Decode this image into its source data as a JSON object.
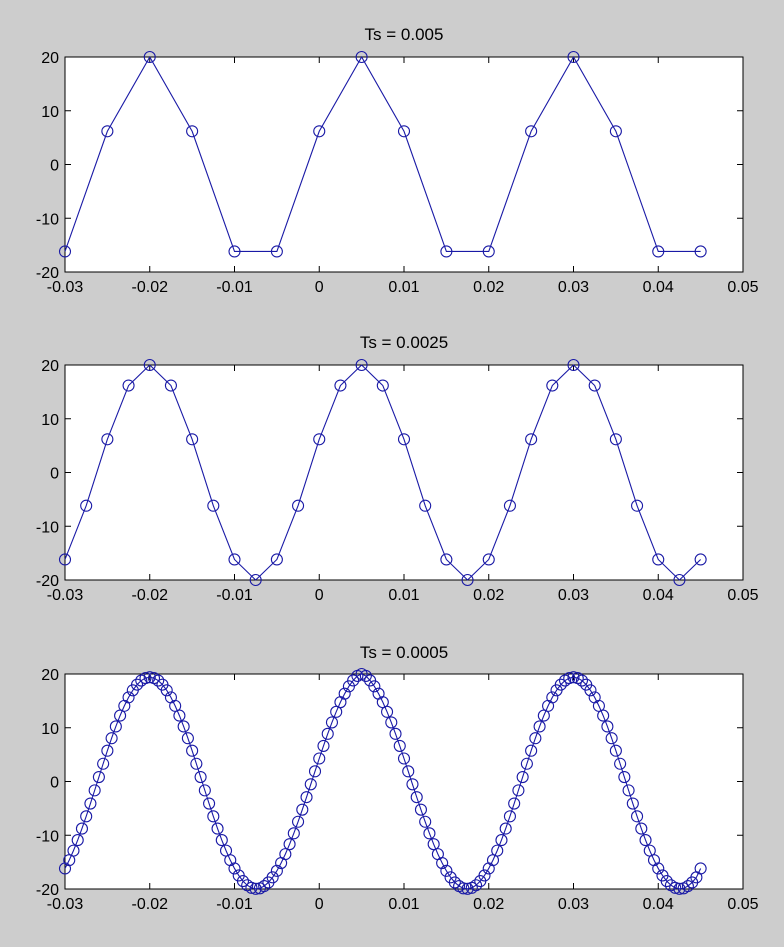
{
  "figure": {
    "background": "#cdcdcd",
    "line_color": "#1a1aa6"
  },
  "chart_data": [
    {
      "type": "line",
      "title": "Ts = 0.005",
      "marker": "circle",
      "xlim": [
        -0.03,
        0.05
      ],
      "ylim": [
        -20,
        20
      ],
      "xticks": [
        "-0.03",
        "-0.02",
        "-0.01",
        "0",
        "0.01",
        "0.02",
        "0.03",
        "0.04",
        "0.05"
      ],
      "yticks": [
        "-20",
        "-10",
        "0",
        "10",
        "20"
      ],
      "x": [
        -0.03,
        -0.025,
        -0.02,
        -0.015,
        -0.01,
        -0.005,
        0,
        0.005,
        0.01,
        0.015,
        0.02,
        0.025,
        0.03,
        0.035,
        0.04,
        0.045
      ],
      "y": [
        -16.18,
        6.18,
        20,
        6.18,
        -16.18,
        -16.18,
        6.18,
        20,
        6.18,
        -16.18,
        -16.18,
        6.18,
        20,
        6.18,
        -16.18,
        -16.18
      ]
    },
    {
      "type": "line",
      "title": "Ts = 0.0025",
      "marker": "circle",
      "xlim": [
        -0.03,
        0.05
      ],
      "ylim": [
        -20,
        20
      ],
      "xticks": [
        "-0.03",
        "-0.02",
        "-0.01",
        "0",
        "0.01",
        "0.02",
        "0.03",
        "0.04",
        "0.05"
      ],
      "yticks": [
        "-20",
        "-10",
        "0",
        "10",
        "20"
      ],
      "x": [
        -0.03,
        -0.0275,
        -0.025,
        -0.0225,
        -0.02,
        -0.0175,
        -0.015,
        -0.0125,
        -0.01,
        -0.0075,
        -0.005,
        -0.0025,
        0,
        0.0025,
        0.005,
        0.0075,
        0.01,
        0.0125,
        0.015,
        0.0175,
        0.02,
        0.0225,
        0.025,
        0.0275,
        0.03,
        0.0325,
        0.035,
        0.0375,
        0.04,
        0.0425,
        0.045
      ],
      "y": [
        -16.18,
        -6.18,
        6.18,
        16.18,
        20,
        16.18,
        6.18,
        -6.18,
        -16.18,
        -20,
        -16.18,
        -6.18,
        6.18,
        16.18,
        20,
        16.18,
        6.18,
        -6.18,
        -16.18,
        -20,
        -16.18,
        -6.18,
        6.18,
        16.18,
        20,
        16.18,
        6.18,
        -6.18,
        -16.18,
        -20,
        -16.18
      ]
    },
    {
      "type": "line",
      "title": "Ts = 0.0005",
      "marker": "circle",
      "xlim": [
        -0.03,
        0.05
      ],
      "ylim": [
        -20,
        20
      ],
      "xticks": [
        "-0.03",
        "-0.02",
        "-0.01",
        "0",
        "0.01",
        "0.02",
        "0.03",
        "0.04",
        "0.05"
      ],
      "yticks": [
        "-20",
        "-10",
        "0",
        "10",
        "20"
      ],
      "x": [
        -0.03,
        -0.0295,
        -0.029,
        -0.0285,
        -0.028,
        -0.0275,
        -0.027,
        -0.0265,
        -0.026,
        -0.0255,
        -0.025,
        -0.0245,
        -0.024,
        -0.0235,
        -0.023,
        -0.0225,
        -0.022,
        -0.0215,
        -0.021,
        -0.0205,
        -0.02,
        -0.0195,
        -0.019,
        -0.0185,
        -0.018,
        -0.0175,
        -0.017,
        -0.0165,
        -0.016,
        -0.0155,
        -0.015,
        -0.0145,
        -0.014,
        -0.0135,
        -0.013,
        -0.0125,
        -0.012,
        -0.0115,
        -0.011,
        -0.0105,
        -0.01,
        -0.0095,
        -0.009,
        -0.0085,
        -0.008,
        -0.0075,
        -0.007,
        -0.0065,
        -0.006,
        -0.0055,
        -0.005,
        -0.0045,
        -0.004,
        -0.0035,
        -0.003,
        -0.0025,
        -0.002,
        -0.0015,
        -0.001,
        -0.0005,
        0,
        0.0005,
        0.001,
        0.0015,
        0.002,
        0.0025,
        0.003,
        0.0035,
        0.004,
        0.0045,
        0.005,
        0.0055,
        0.006,
        0.0065,
        0.007,
        0.0075,
        0.008,
        0.0085,
        0.009,
        0.0095,
        0.01,
        0.0105,
        0.011,
        0.0115,
        0.012,
        0.0125,
        0.013,
        0.0135,
        0.014,
        0.0145,
        0.015,
        0.0155,
        0.016,
        0.0165,
        0.017,
        0.0175,
        0.018,
        0.0185,
        0.019,
        0.0195,
        0.02,
        0.0205,
        0.021,
        0.0215,
        0.022,
        0.0225,
        0.023,
        0.0235,
        0.024,
        0.0245,
        0.025,
        0.0255,
        0.026,
        0.0265,
        0.027,
        0.0275,
        0.028,
        0.0285,
        0.029,
        0.0295,
        0.03,
        0.0305,
        0.031,
        0.0315,
        0.032,
        0.0325,
        0.033,
        0.0335,
        0.034,
        0.0345,
        0.035,
        0.0355,
        0.036,
        0.0365,
        0.037,
        0.0375,
        0.038,
        0.0385,
        0.039,
        0.0395,
        0.04,
        0.0405,
        0.041,
        0.0415,
        0.042,
        0.0425,
        0.043,
        0.0435,
        0.044,
        0.0445,
        0.045
      ],
      "y": [
        -16.18,
        -14.63,
        -12.86,
        -10.9,
        -8.76,
        -6.48,
        -4.1,
        -1.65,
        0.83,
        3.3,
        5.73,
        8.05,
        10.24,
        12.26,
        14.07,
        15.65,
        16.97,
        18.02,
        18.78,
        19.24,
        19.4,
        19.24,
        18.78,
        18.02,
        16.97,
        15.65,
        14.07,
        12.26,
        10.24,
        8.05,
        5.73,
        3.3,
        0.83,
        -1.65,
        -4.1,
        -6.48,
        -8.76,
        -10.9,
        -12.86,
        -14.63,
        -16.18,
        -17.48,
        -18.53,
        -19.3,
        -19.78,
        -19.97,
        -19.87,
        -19.46,
        -18.78,
        -17.83,
        -16.62,
        -15.17,
        -13.51,
        -11.66,
        -9.64,
        -7.49,
        -5.24,
        -2.91,
        -0.52,
        1.89,
        4.28,
        6.62,
        8.87,
        10.99,
        12.96,
        14.76,
        16.34,
        17.7,
        18.8,
        19.64,
        20.0,
        19.64,
        18.8,
        17.7,
        16.34,
        14.76,
        12.96,
        10.99,
        8.87,
        6.62,
        4.28,
        1.89,
        -0.52,
        -2.91,
        -5.24,
        -7.49,
        -9.64,
        -11.66,
        -13.51,
        -15.17,
        -16.62,
        -17.83,
        -18.78,
        -19.46,
        -19.87,
        -19.97,
        -19.78,
        -19.3,
        -18.53,
        -17.48,
        -16.18,
        -14.63,
        -12.86,
        -10.9,
        -8.76,
        -6.48,
        -4.1,
        -1.65,
        0.83,
        3.3,
        5.73,
        8.05,
        10.24,
        12.26,
        14.07,
        15.65,
        16.97,
        18.02,
        18.78,
        19.24,
        19.4,
        19.24,
        18.78,
        18.02,
        16.97,
        15.65,
        14.07,
        12.26,
        10.24,
        8.05,
        5.73,
        3.3,
        0.83,
        -1.65,
        -4.1,
        -6.48,
        -8.76,
        -10.9,
        -12.86,
        -14.63,
        -16.18,
        -17.48,
        -18.53,
        -19.3,
        -19.78,
        -19.97,
        -19.87,
        -19.46,
        -18.78,
        -17.83,
        -16.18
      ]
    }
  ]
}
